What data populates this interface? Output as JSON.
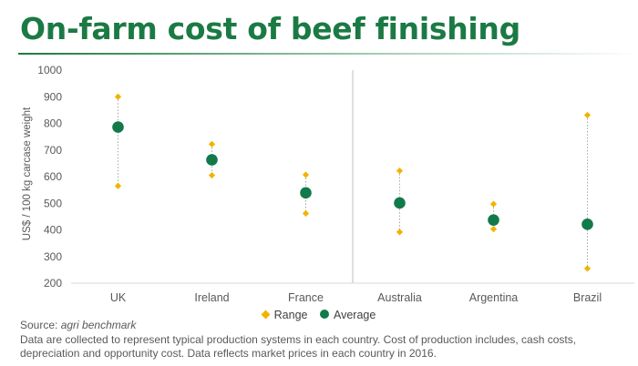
{
  "title": "On-farm cost of beef finishing",
  "footer": {
    "source_label": "Source:",
    "source_name": "agri benchmark",
    "note": "Data are collected to represent typical production systems in each country. Cost of production includes, cash costs, depreciation and opportunity cost. Data reflects market prices in each country in 2016."
  },
  "colors": {
    "title": "#1b7a44",
    "range": "#f2b300",
    "average": "#127a4a",
    "connector": "#a6a6a6",
    "divider": "#bfbfbf"
  },
  "chart_data": {
    "type": "scatter",
    "title": "",
    "xlabel": "",
    "ylabel": "US$ / 100 kg carcase weight",
    "ylim": [
      200,
      1000
    ],
    "yticks": [
      200,
      300,
      400,
      500,
      600,
      700,
      800,
      900,
      1000
    ],
    "grid": false,
    "legend_position": "bottom",
    "categories": [
      "UK",
      "Ireland",
      "France",
      "Australia",
      "Argentina",
      "Brazil"
    ],
    "series": [
      {
        "name": "Range",
        "marker": "diamond",
        "min": [
          565,
          605,
          462,
          392,
          403,
          255
        ],
        "max": [
          900,
          722,
          607,
          622,
          497,
          831
        ]
      },
      {
        "name": "Average",
        "marker": "circle",
        "values": [
          786,
          663,
          539,
          501,
          437,
          421
        ]
      }
    ],
    "divider_after_category": "France"
  }
}
